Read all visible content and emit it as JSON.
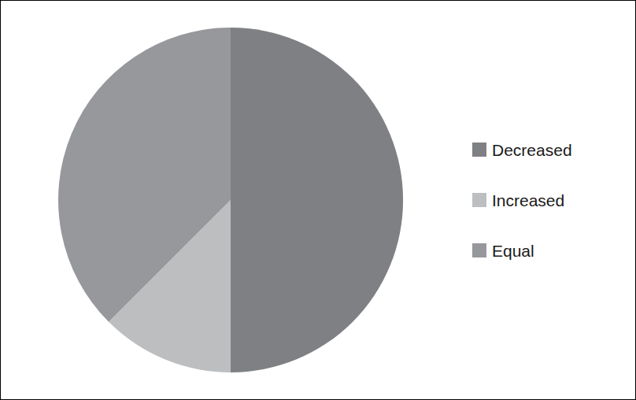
{
  "chart_data": {
    "type": "pie",
    "categories": [
      "Decreased",
      "Increased",
      "Equal"
    ],
    "values": [
      50,
      12.5,
      37.5
    ],
    "colors": [
      "#7f8084",
      "#bdbec0",
      "#97989c"
    ],
    "legend": "right"
  }
}
